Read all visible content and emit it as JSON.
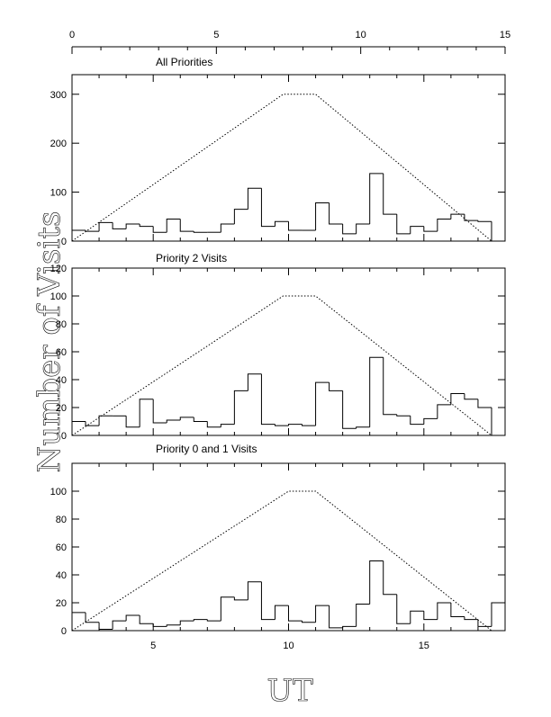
{
  "figure": {
    "ylabel": "Number of Visits",
    "xlabel": "UT",
    "top_axis": {
      "xlim": [
        0,
        15
      ],
      "ticks": [
        0,
        5,
        10,
        15
      ]
    },
    "bottom_axis": {
      "xlim": [
        2,
        18
      ],
      "ticks": [
        5,
        10,
        15
      ]
    }
  },
  "chart_data": [
    {
      "type": "histogram",
      "title": "All Priorities",
      "x_axis": "UT",
      "xlim": [
        2,
        18
      ],
      "ylim": [
        0,
        340
      ],
      "yticks": [
        0,
        100,
        200,
        300
      ],
      "bin_edges": [
        2,
        2.5,
        3,
        3.5,
        4,
        4.5,
        5,
        5.5,
        6,
        6.5,
        7,
        7.5,
        8,
        8.5,
        9,
        9.5,
        10,
        10.5,
        11,
        11.5,
        12,
        12.5,
        13,
        13.5,
        14,
        14.5,
        15,
        15.5,
        16,
        16.5,
        17,
        17.5,
        18
      ],
      "counts": [
        22,
        20,
        38,
        25,
        35,
        30,
        18,
        45,
        20,
        18,
        18,
        35,
        65,
        108,
        30,
        40,
        22,
        22,
        78,
        35,
        15,
        35,
        138,
        55,
        15,
        30,
        20,
        45,
        55,
        42,
        40,
        0
      ],
      "envelope": {
        "style": "dotted",
        "x": [
          2,
          9.8,
          11,
          17.5
        ],
        "y": [
          0,
          300,
          300,
          0
        ]
      }
    },
    {
      "type": "histogram",
      "title": "Priority 2 Visits",
      "x_axis": "UT",
      "xlim": [
        2,
        18
      ],
      "ylim": [
        0,
        120
      ],
      "yticks": [
        0,
        20,
        40,
        60,
        80,
        100,
        120
      ],
      "bin_edges": [
        2,
        2.5,
        3,
        3.5,
        4,
        4.5,
        5,
        5.5,
        6,
        6.5,
        7,
        7.5,
        8,
        8.5,
        9,
        9.5,
        10,
        10.5,
        11,
        11.5,
        12,
        12.5,
        13,
        13.5,
        14,
        14.5,
        15,
        15.5,
        16,
        16.5,
        17,
        17.5,
        18
      ],
      "counts": [
        10,
        7,
        14,
        14,
        6,
        26,
        9,
        11,
        13,
        10,
        6,
        8,
        32,
        44,
        8,
        7,
        8,
        7,
        38,
        32,
        5,
        6,
        56,
        15,
        14,
        8,
        12,
        22,
        30,
        26,
        20,
        0
      ],
      "envelope": {
        "style": "dotted",
        "x": [
          2,
          9.8,
          11,
          17.5
        ],
        "y": [
          0,
          100,
          100,
          0
        ]
      }
    },
    {
      "type": "histogram",
      "title": "Priority 0 and 1 Visits",
      "x_axis": "UT",
      "xlim": [
        2,
        18
      ],
      "ylim": [
        0,
        120
      ],
      "yticks": [
        0,
        20,
        40,
        60,
        80,
        100
      ],
      "bin_edges": [
        2,
        2.5,
        3,
        3.5,
        4,
        4.5,
        5,
        5.5,
        6,
        6.5,
        7,
        7.5,
        8,
        8.5,
        9,
        9.5,
        10,
        10.5,
        11,
        11.5,
        12,
        12.5,
        13,
        13.5,
        14,
        14.5,
        15,
        15.5,
        16,
        16.5,
        17,
        17.5,
        18
      ],
      "counts": [
        13,
        6,
        1,
        7,
        11,
        5,
        3,
        4,
        7,
        8,
        7,
        24,
        22,
        35,
        8,
        18,
        7,
        6,
        18,
        2,
        3,
        19,
        50,
        26,
        5,
        14,
        8,
        20,
        10,
        8,
        3,
        20
      ],
      "envelope": {
        "style": "dotted",
        "x": [
          2,
          10,
          11,
          17.5
        ],
        "y": [
          0,
          100,
          100,
          0
        ]
      }
    }
  ]
}
